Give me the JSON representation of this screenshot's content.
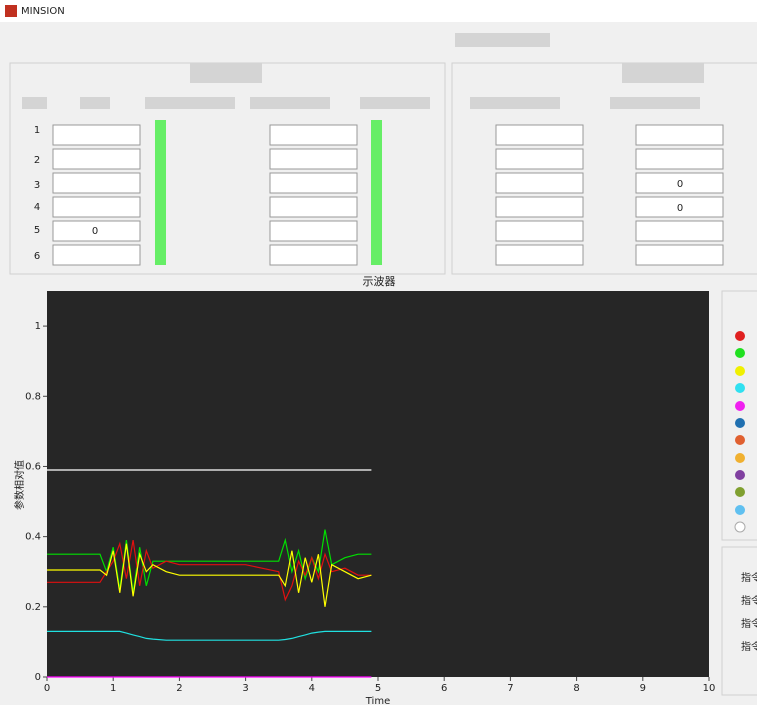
{
  "window": {
    "title": "MINSION"
  },
  "table": {
    "row_numbers": [
      "1",
      "2",
      "3",
      "4",
      "5",
      "6"
    ],
    "fields": [
      "0",
      "0",
      "0"
    ]
  },
  "side_panel": {
    "labels": [
      "指令",
      "指令",
      "指令",
      "指令"
    ]
  },
  "chart_data": {
    "type": "line",
    "title": "示波器",
    "y_label": "参数相对值",
    "x_label": "Time",
    "x": [
      0,
      0.5,
      0.8,
      0.9,
      1.0,
      1.1,
      1.2,
      1.3,
      1.4,
      1.5,
      1.6,
      1.8,
      2.0,
      2.5,
      3.0,
      3.5,
      3.6,
      3.7,
      3.8,
      3.9,
      4.0,
      4.1,
      4.2,
      4.3,
      4.5,
      4.7,
      4.9
    ],
    "series": [
      {
        "color": "#ffffff",
        "values": [
          0.59,
          0.59,
          0.59,
          0.59,
          0.59,
          0.59,
          0.59,
          0.59,
          0.59,
          0.59,
          0.59,
          0.59,
          0.59,
          0.59,
          0.59,
          0.59,
          0.59,
          0.59,
          0.59,
          0.59,
          0.59,
          0.59,
          0.59,
          0.59,
          0.59,
          0.59,
          0.59
        ]
      },
      {
        "color": "#00e000",
        "values": [
          0.35,
          0.35,
          0.35,
          0.3,
          0.37,
          0.25,
          0.39,
          0.24,
          0.37,
          0.26,
          0.33,
          0.33,
          0.33,
          0.33,
          0.33,
          0.33,
          0.39,
          0.3,
          0.36,
          0.28,
          0.34,
          0.3,
          0.42,
          0.32,
          0.34,
          0.35,
          0.35
        ]
      },
      {
        "color": "#e01010",
        "values": [
          0.27,
          0.27,
          0.27,
          0.3,
          0.33,
          0.38,
          0.28,
          0.39,
          0.26,
          0.36,
          0.31,
          0.33,
          0.32,
          0.32,
          0.32,
          0.3,
          0.22,
          0.26,
          0.33,
          0.29,
          0.34,
          0.28,
          0.35,
          0.3,
          0.31,
          0.29,
          0.29
        ]
      },
      {
        "color": "#ffff00",
        "values": [
          0.305,
          0.305,
          0.305,
          0.29,
          0.36,
          0.24,
          0.38,
          0.23,
          0.35,
          0.3,
          0.32,
          0.3,
          0.29,
          0.29,
          0.29,
          0.29,
          0.26,
          0.36,
          0.24,
          0.34,
          0.27,
          0.35,
          0.2,
          0.32,
          0.3,
          0.28,
          0.29
        ]
      },
      {
        "color": "#20e0e0",
        "values": [
          0.13,
          0.13,
          0.13,
          0.13,
          0.13,
          0.13,
          0.125,
          0.12,
          0.115,
          0.11,
          0.108,
          0.105,
          0.105,
          0.105,
          0.105,
          0.105,
          0.107,
          0.11,
          0.115,
          0.12,
          0.125,
          0.128,
          0.13,
          0.13,
          0.13,
          0.13,
          0.13
        ]
      },
      {
        "color": "#ff00ff",
        "values": [
          0,
          0,
          0,
          0,
          0,
          0,
          0,
          0,
          0,
          0,
          0,
          0,
          0,
          0,
          0,
          0,
          0,
          0,
          0,
          0,
          0,
          0,
          0,
          0,
          0,
          0,
          0
        ]
      }
    ],
    "xlim": [
      0,
      10
    ],
    "xticks": [
      0,
      1,
      2,
      3,
      4,
      5,
      6,
      7,
      8,
      9,
      10
    ],
    "ylim": [
      0,
      1.1
    ],
    "yticks": [
      0,
      0.2,
      0.4,
      0.6,
      0.8,
      1
    ],
    "grid": false
  }
}
